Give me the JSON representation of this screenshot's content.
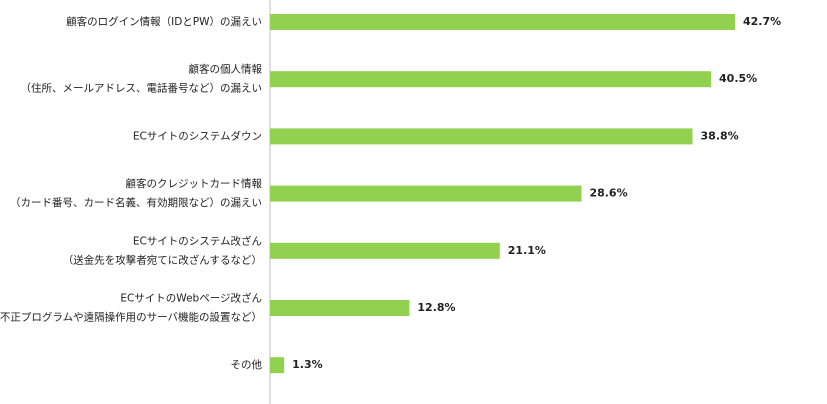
{
  "chart_data": {
    "type": "bar",
    "orientation": "horizontal",
    "color": "#92d050",
    "categories": [
      [
        "顧客のログイン情報（IDとPW）の漏えい"
      ],
      [
        "顧客の個人情報",
        "（住所、メールアドレス、電話番号など）の漏えい"
      ],
      [
        "ECサイトのシステムダウン"
      ],
      [
        "顧客のクレジットカード情報",
        "（カード番号、カード名義、有効期限など）の漏えい"
      ],
      [
        "ECサイトのシステム改ざん",
        "（送金先を攻撃者宛てに改ざんするなど）"
      ],
      [
        "ECサイトのWebページ改ざん",
        "（不正プログラムや遠隔操作用のサーバ機能の設置など）"
      ],
      [
        "その他"
      ]
    ],
    "values": [
      42.7,
      40.5,
      38.8,
      28.6,
      21.1,
      12.8,
      1.3
    ],
    "value_labels": [
      "42.7%",
      "40.5%",
      "38.8%",
      "28.6%",
      "21.1%",
      "12.8%",
      "1.3%"
    ]
  }
}
